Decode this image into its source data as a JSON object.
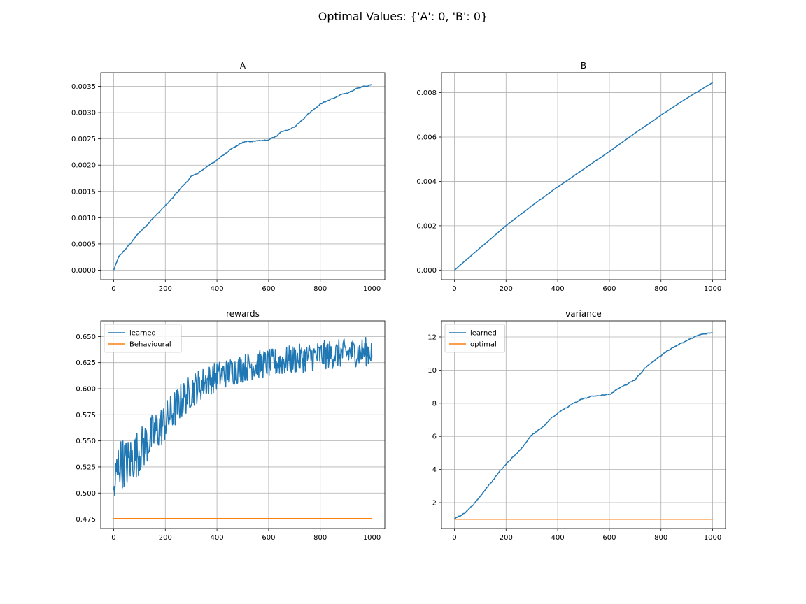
{
  "figure": {
    "suptitle": "Optimal Values: {'A': 0, 'B': 0}"
  },
  "colors": {
    "learned": "#1f77b4",
    "reference": "#ff7f0e",
    "grid": "#b0b0b0"
  },
  "chart_data": [
    {
      "id": "A",
      "type": "line",
      "title": "A",
      "xlabel": "",
      "ylabel": "",
      "xlim": [
        -50,
        1050
      ],
      "ylim": [
        -0.00018,
        0.00376
      ],
      "xticks": [
        0,
        200,
        400,
        600,
        800,
        1000
      ],
      "yticks": [
        0.0,
        0.0005,
        0.001,
        0.0015,
        0.002,
        0.0025,
        0.003,
        0.0035
      ],
      "ytick_labels": [
        "0.0000",
        "0.0005",
        "0.0010",
        "0.0015",
        "0.0020",
        "0.0025",
        "0.0030",
        "0.0035"
      ],
      "grid": true,
      "legend": null,
      "series": [
        {
          "color": "#1f77b4",
          "noise": 1.5e-05,
          "x": [
            0,
            20,
            50,
            100,
            150,
            200,
            250,
            300,
            350,
            400,
            450,
            500,
            550,
            600,
            650,
            700,
            750,
            800,
            850,
            900,
            950,
            1000
          ],
          "y": [
            0.0,
            0.00025,
            0.00042,
            0.00072,
            0.00098,
            0.00122,
            0.0015,
            0.00178,
            0.00193,
            0.0021,
            0.00228,
            0.00243,
            0.00247,
            0.00247,
            0.00262,
            0.00272,
            0.00297,
            0.00317,
            0.00327,
            0.00337,
            0.00347,
            0.00354
          ]
        }
      ]
    },
    {
      "id": "B",
      "type": "line",
      "title": "B",
      "xlabel": "",
      "ylabel": "",
      "xlim": [
        -50,
        1050
      ],
      "ylim": [
        -0.00043,
        0.0089
      ],
      "xticks": [
        0,
        200,
        400,
        600,
        800,
        1000
      ],
      "yticks": [
        0.0,
        0.002,
        0.004,
        0.006,
        0.008
      ],
      "ytick_labels": [
        "0.000",
        "0.002",
        "0.004",
        "0.006",
        "0.008"
      ],
      "grid": true,
      "legend": null,
      "series": [
        {
          "color": "#1f77b4",
          "noise": 8e-06,
          "x": [
            0,
            100,
            200,
            300,
            400,
            500,
            600,
            700,
            800,
            900,
            1000
          ],
          "y": [
            0.0,
            0.001,
            0.002,
            0.0029,
            0.00375,
            0.00455,
            0.00535,
            0.00618,
            0.00698,
            0.00775,
            0.00845
          ]
        }
      ]
    },
    {
      "id": "rewards",
      "type": "line",
      "title": "rewards",
      "xlabel": "",
      "ylabel": "",
      "xlim": [
        -50,
        1050
      ],
      "ylim": [
        0.466,
        0.665
      ],
      "xticks": [
        0,
        200,
        400,
        600,
        800,
        1000
      ],
      "yticks": [
        0.475,
        0.5,
        0.525,
        0.55,
        0.575,
        0.6,
        0.625,
        0.65
      ],
      "ytick_labels": [
        "0.475",
        "0.500",
        "0.525",
        "0.550",
        "0.575",
        "0.600",
        "0.625",
        "0.650"
      ],
      "grid": true,
      "legend": {
        "position": "upper-left",
        "entries": [
          "learned",
          "Behavioural"
        ]
      },
      "series": [
        {
          "name": "learned",
          "color": "#1f77b4",
          "noise": 0.01,
          "noise_decay": true,
          "x": [
            0,
            20,
            50,
            100,
            150,
            200,
            250,
            300,
            350,
            400,
            450,
            500,
            550,
            600,
            650,
            700,
            750,
            800,
            850,
            900,
            950,
            1000
          ],
          "y": [
            0.5,
            0.53,
            0.528,
            0.54,
            0.555,
            0.568,
            0.585,
            0.598,
            0.606,
            0.612,
            0.616,
            0.62,
            0.623,
            0.624,
            0.626,
            0.628,
            0.63,
            0.632,
            0.633,
            0.634,
            0.635,
            0.636
          ]
        },
        {
          "name": "Behavioural",
          "color": "#ff7f0e",
          "noise": 0,
          "x": [
            0,
            1000
          ],
          "y": [
            0.4755,
            0.4755
          ]
        }
      ]
    },
    {
      "id": "variance",
      "type": "line",
      "title": "variance",
      "xlabel": "",
      "ylabel": "",
      "xlim": [
        -50,
        1050
      ],
      "ylim": [
        0.44,
        12.97
      ],
      "xticks": [
        0,
        200,
        400,
        600,
        800,
        1000
      ],
      "yticks": [
        2,
        4,
        6,
        8,
        10,
        12
      ],
      "ytick_labels": [
        "2",
        "4",
        "6",
        "8",
        "10",
        "12"
      ],
      "grid": true,
      "legend": {
        "position": "upper-left",
        "entries": [
          "learned",
          "optimal"
        ]
      },
      "series": [
        {
          "name": "learned",
          "color": "#1f77b4",
          "noise": 0.05,
          "x": [
            0,
            50,
            100,
            150,
            200,
            250,
            300,
            350,
            400,
            450,
            500,
            550,
            600,
            650,
            700,
            750,
            800,
            850,
            900,
            950,
            1000
          ],
          "y": [
            1.0,
            1.5,
            2.4,
            3.4,
            4.3,
            5.1,
            6.1,
            6.7,
            7.4,
            7.9,
            8.3,
            8.5,
            8.5,
            9.0,
            9.4,
            10.3,
            10.9,
            11.4,
            11.8,
            12.1,
            12.3
          ]
        },
        {
          "name": "optimal",
          "color": "#ff7f0e",
          "noise": 0,
          "x": [
            0,
            1000
          ],
          "y": [
            1.0,
            1.0
          ]
        }
      ]
    }
  ]
}
